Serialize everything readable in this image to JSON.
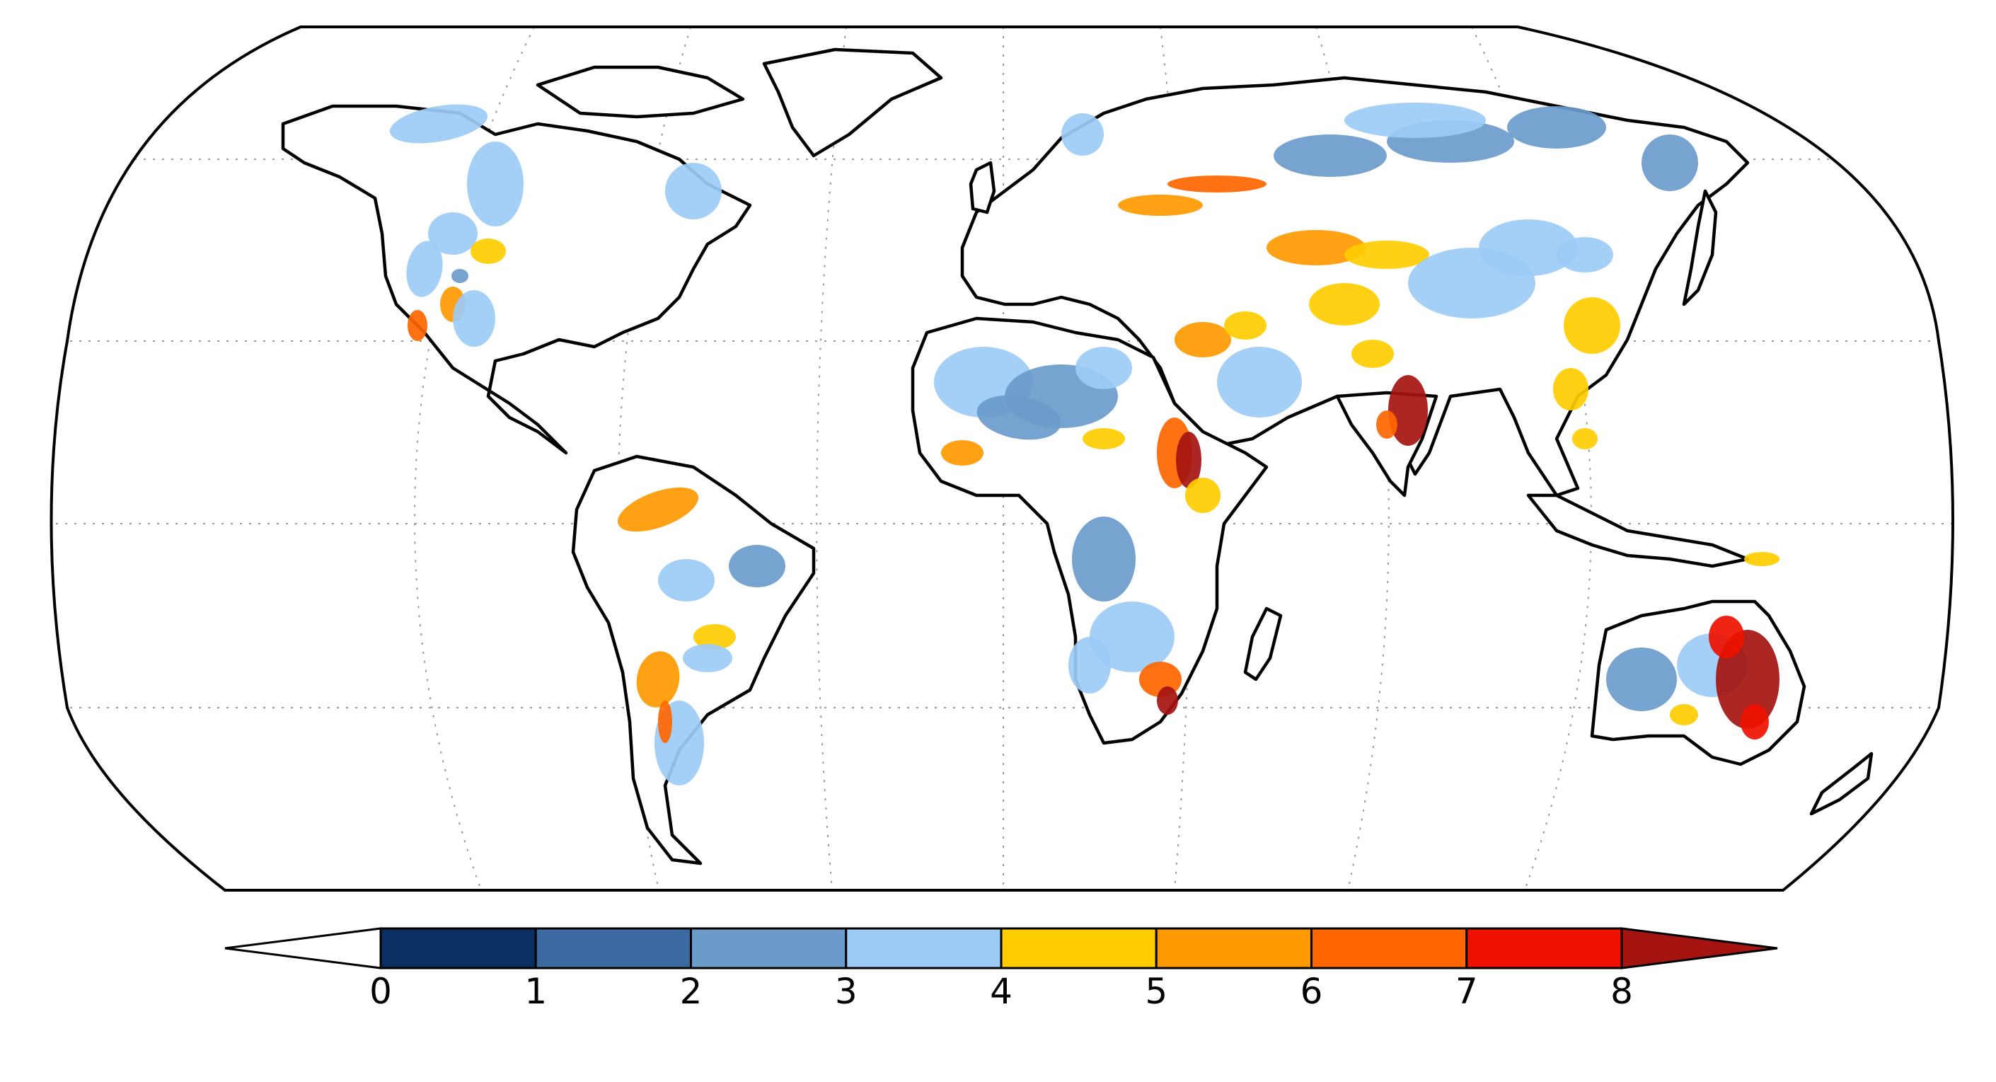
{
  "colorbar": {
    "labels": [
      "0",
      "1",
      "2",
      "3",
      "4",
      "5",
      "6",
      "7",
      "8"
    ],
    "bins": [
      {
        "range": [
          0,
          1
        ],
        "color": "#0b2f63"
      },
      {
        "range": [
          1,
          2
        ],
        "color": "#3a6a9f"
      },
      {
        "range": [
          2,
          3
        ],
        "color": "#6a9bcb"
      },
      {
        "range": [
          3,
          4
        ],
        "color": "#9ccbf6"
      },
      {
        "range": [
          4,
          5
        ],
        "color": "#ffcc00"
      },
      {
        "range": [
          5,
          6
        ],
        "color": "#ff9900"
      },
      {
        "range": [
          6,
          7
        ],
        "color": "#ff6600"
      },
      {
        "range": [
          7,
          8
        ],
        "color": "#ee1100"
      }
    ],
    "under_color": "#ffffff",
    "over_color": "#a51410"
  },
  "map": {
    "projection": "Robinson",
    "graticule": "dotted",
    "coastline_color": "#000000",
    "ocean_color": "#ffffff"
  }
}
